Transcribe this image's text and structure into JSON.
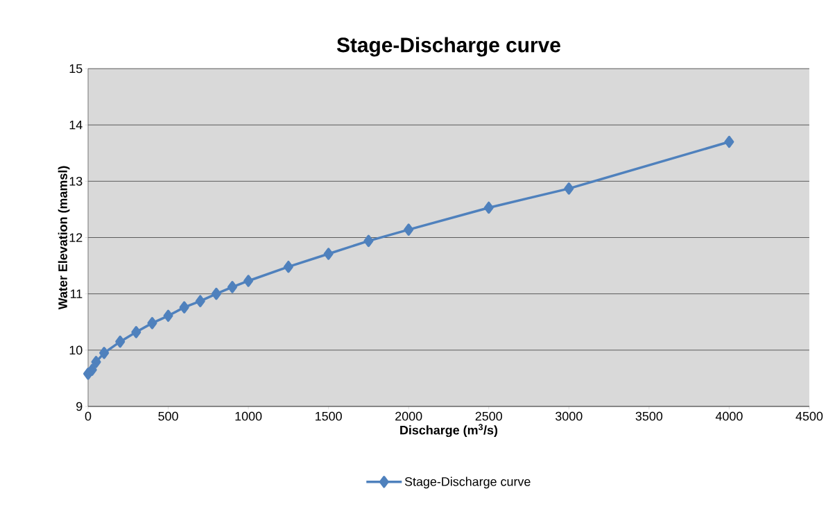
{
  "chart_data": {
    "type": "line",
    "title": "Stage-Discharge curve",
    "xlabel": "Discharge (m$^{3}$/s)",
    "ylabel": "Water Elevation (mamsl)",
    "x": [
      0,
      25,
      50,
      100,
      200,
      300,
      400,
      500,
      600,
      700,
      800,
      900,
      1000,
      1250,
      1500,
      1750,
      2000,
      2500,
      3000,
      4000
    ],
    "series": [
      {
        "name": "Stage-Discharge curve",
        "color": "#4f81bd",
        "values": [
          9.58,
          9.65,
          9.79,
          9.95,
          10.15,
          10.32,
          10.48,
          10.61,
          10.76,
          10.87,
          11.0,
          11.12,
          11.23,
          11.48,
          11.71,
          11.94,
          12.14,
          12.53,
          12.87,
          13.7
        ]
      }
    ],
    "xlim": [
      0,
      4500
    ],
    "ylim": [
      9,
      15
    ],
    "xticks": [
      0,
      500,
      1000,
      1500,
      2000,
      2500,
      3000,
      3500,
      4000,
      4500
    ],
    "yticks": [
      9,
      10,
      11,
      12,
      13,
      14,
      15
    ],
    "grid": "y",
    "legend": "bottom",
    "marker": "diamond",
    "line_style": "solid"
  }
}
